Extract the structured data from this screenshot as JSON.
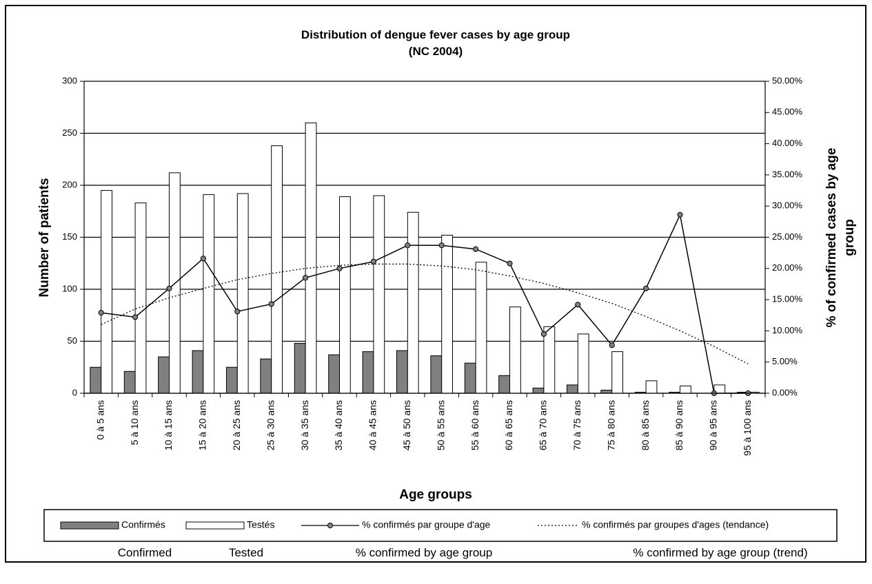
{
  "chart_data": {
    "type": "bar",
    "title": [
      "Distribution of dengue fever cases by age group",
      "(NC 2004)"
    ],
    "xlabel": "Age groups",
    "ylabel": "Number of patients",
    "y2label": [
      "% of confirmed cases by age",
      "group"
    ],
    "categories": [
      "0 à 5 ans",
      "5 à 10 ans",
      "10 à 15 ans",
      "15 à 20 ans",
      "20 à 25 ans",
      "25 à 30 ans",
      "30 à 35 ans",
      "35 à 40 ans",
      "40 à 45 ans",
      "45 à 50 ans",
      "50 à 55 ans",
      "55 à 60 ans",
      "60 à 65 ans",
      "65 à 70 ans",
      "70 à 75 ans",
      "75 à 80 ans",
      "80 à 85 ans",
      "85 à 90 ans",
      "90 à 95 ans",
      "95 à 100 ans"
    ],
    "series": [
      {
        "name": "Confirmés",
        "type": "bar",
        "color": "#808080",
        "values": [
          25,
          21,
          35,
          41,
          25,
          33,
          48,
          37,
          40,
          41,
          36,
          29,
          17,
          5,
          8,
          3,
          1,
          1,
          0,
          1
        ]
      },
      {
        "name": "Testés",
        "type": "bar",
        "color": "#ffffff",
        "values": [
          195,
          183,
          212,
          191,
          192,
          238,
          260,
          189,
          190,
          174,
          152,
          126,
          83,
          64,
          57,
          40,
          12,
          7,
          8,
          1
        ]
      },
      {
        "name": "% confirmés par groupe d'age",
        "type": "line",
        "axis": "y2",
        "color": "#000000",
        "marker": "#808080",
        "values": [
          12.9,
          12.2,
          16.8,
          21.6,
          13.1,
          14.3,
          18.5,
          20.0,
          21.1,
          23.7,
          23.7,
          23.1,
          20.8,
          9.5,
          14.2,
          7.7,
          16.8,
          28.6,
          0,
          0
        ]
      },
      {
        "name": "% confirmés par groupes d'ages (tendance)",
        "type": "line",
        "axis": "y2",
        "color": "#000000",
        "dashed": true,
        "values": [
          11.0,
          13.5,
          15.3,
          16.8,
          18.2,
          19.2,
          20.0,
          20.5,
          20.7,
          20.7,
          20.4,
          19.8,
          18.8,
          17.6,
          16.1,
          14.4,
          12.3,
          10.0,
          7.5,
          4.7
        ]
      }
    ],
    "ylim": [
      0,
      300
    ],
    "yticks": [
      0,
      50,
      100,
      150,
      200,
      250,
      300
    ],
    "y2lim": [
      0,
      50
    ],
    "y2ticks": [
      {
        "value": 0,
        "label": "0.00%"
      },
      {
        "value": 5,
        "label": "5.00%"
      },
      {
        "value": 10,
        "label": "10.00%"
      },
      {
        "value": 15,
        "label": "15.00%"
      },
      {
        "value": 20,
        "label": "20.00%"
      },
      {
        "value": 25,
        "label": "25.00%"
      },
      {
        "value": 30,
        "label": "30.00%"
      },
      {
        "value": 35,
        "label": "35.00%"
      },
      {
        "value": 40,
        "label": "40.00%"
      },
      {
        "value": 45,
        "label": "45.00%"
      },
      {
        "value": 50,
        "label": "50.00%"
      }
    ],
    "grid": true,
    "legend": "bottom",
    "legend_translations": [
      "Confirmed",
      "Tested",
      "% confirmed by age group",
      "% confirmed by age group (trend)"
    ]
  }
}
